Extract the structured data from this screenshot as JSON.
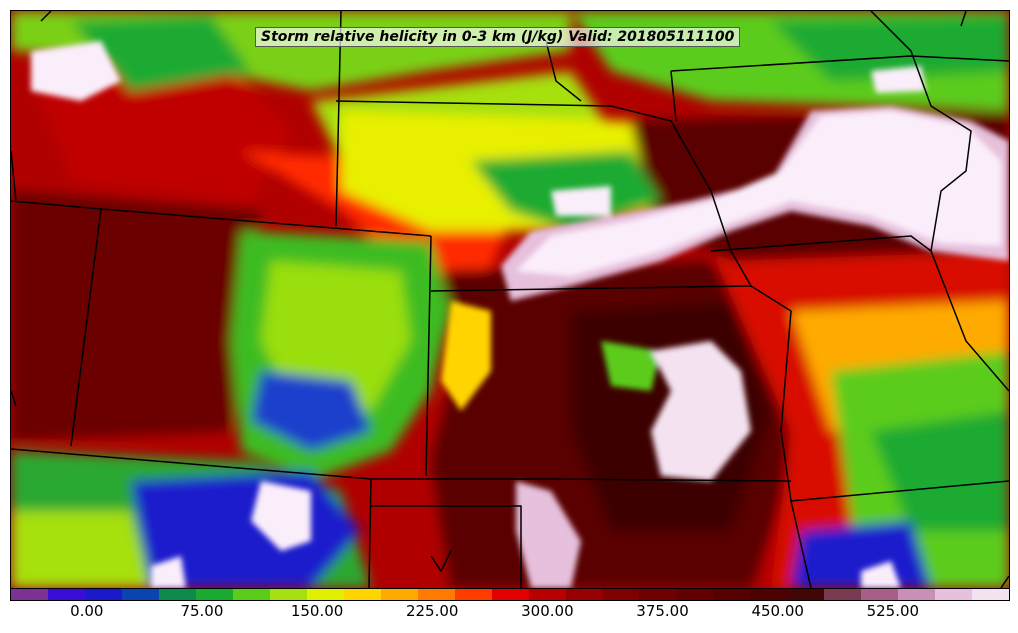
{
  "title": "Storm relative helicity in 0-3 km (J/kg) Valid: 201805111100",
  "colorbar": {
    "min": -50,
    "max": 600,
    "step": 25,
    "colors": [
      "#7b3294",
      "#3a0cd8",
      "#1a1acc",
      "#0a44b0",
      "#0e8a4a",
      "#1aaa30",
      "#5ccc1a",
      "#a6e010",
      "#e0f000",
      "#ffd400",
      "#ffaa00",
      "#ff7a00",
      "#ff3c00",
      "#e00000",
      "#b80000",
      "#960000",
      "#800000",
      "#700000",
      "#620000",
      "#560000",
      "#4c0000",
      "#420606",
      "#7a3a52",
      "#a85e88",
      "#c890b8",
      "#e6c0dc",
      "#f4e2f0"
    ],
    "ticks": [
      "0.00",
      "75.00",
      "150.00",
      "225.00",
      "300.00",
      "375.00",
      "450.00",
      "525.00"
    ],
    "tick_values": [
      0,
      75,
      150,
      225,
      300,
      375,
      450,
      525
    ]
  },
  "legend_colors": {
    "very_high": "#fbeefb",
    "high": "#6a0000",
    "medium": "#e21a00",
    "low": "#5ccc1a",
    "very_low": "#1a1acc",
    "negative": "#7b3294"
  }
}
